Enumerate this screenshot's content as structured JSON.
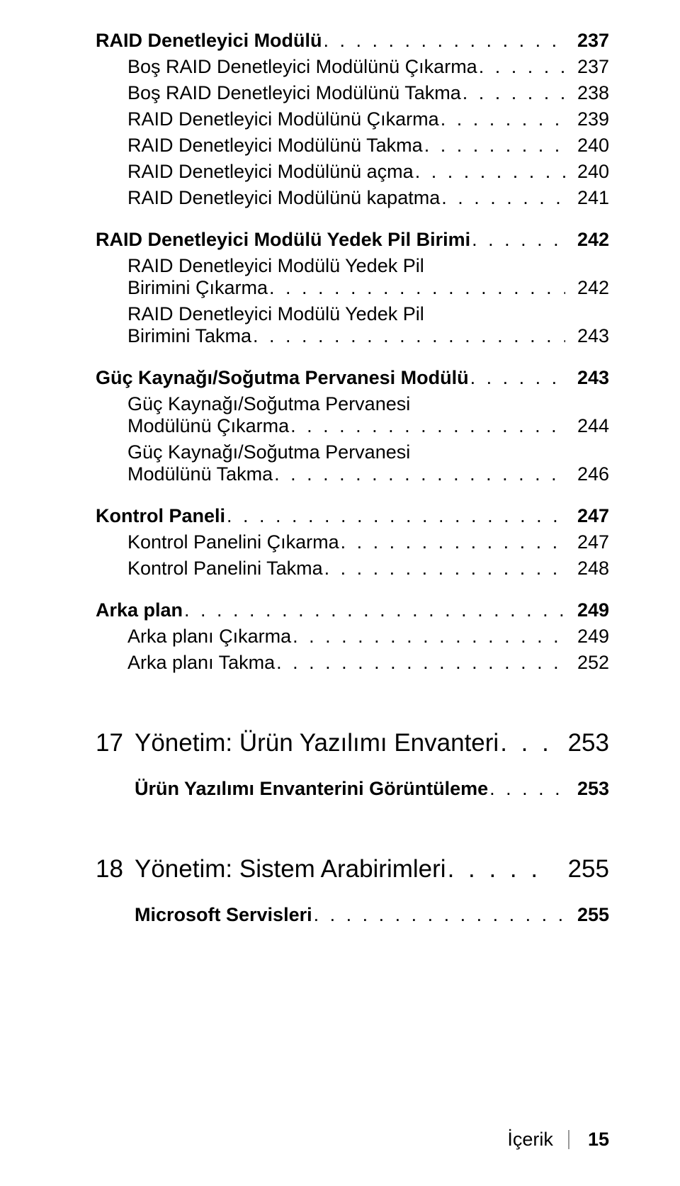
{
  "dots": ". . . . . . . . . . . . . . . . . . . . . . . . . . . . . . . . . . . . . . . . . . . .",
  "toc": {
    "s1": {
      "label": "RAID Denetleyici Modülü",
      "page": "237"
    },
    "s1a": {
      "label": "Boş RAID Denetleyici Modülünü Çıkarma",
      "page": "237"
    },
    "s1b": {
      "label": "Boş RAID Denetleyici Modülünü Takma",
      "page": "238"
    },
    "s1c": {
      "label": "RAID Denetleyici Modülünü Çıkarma",
      "page": "239"
    },
    "s1d": {
      "label": "RAID Denetleyici Modülünü Takma",
      "page": "240"
    },
    "s1e": {
      "label": "RAID Denetleyici Modülünü açma",
      "page": "240"
    },
    "s1f": {
      "label": "RAID Denetleyici Modülünü kapatma",
      "page": "241"
    },
    "s2": {
      "label": "RAID Denetleyici Modülü Yedek Pil Birimi",
      "page": "242"
    },
    "s2a": {
      "line1": "RAID Denetleyici Modülü Yedek Pil",
      "line2": "Birimini Çıkarma",
      "page": "242"
    },
    "s2b": {
      "line1": "RAID Denetleyici Modülü Yedek Pil",
      "line2": "Birimini Takma",
      "page": "243"
    },
    "s3": {
      "label": "Güç Kaynağı/Soğutma Pervanesi Modülü",
      "page": "243"
    },
    "s3a": {
      "line1": "Güç Kaynağı/Soğutma Pervanesi",
      "line2": "Modülünü Çıkarma",
      "page": "244"
    },
    "s3b": {
      "line1": "Güç Kaynağı/Soğutma Pervanesi",
      "line2": "Modülünü Takma",
      "page": "246"
    },
    "s4": {
      "label": "Kontrol Paneli",
      "page": "247"
    },
    "s4a": {
      "label": "Kontrol Panelini Çıkarma",
      "page": "247"
    },
    "s4b": {
      "label": "Kontrol Panelini Takma",
      "page": "248"
    },
    "s5": {
      "label": "Arka plan",
      "page": "249"
    },
    "s5a": {
      "label": "Arka planı Çıkarma",
      "page": "249"
    },
    "s5b": {
      "label": "Arka planı Takma",
      "page": "252"
    },
    "ch17": {
      "num": "17",
      "label": "Yönetim: Ürün Yazılımı Envanteri",
      "page": "253"
    },
    "ch17a": {
      "label": "Ürün Yazılımı Envanterini Görüntüleme",
      "page": "253"
    },
    "ch18": {
      "num": "18",
      "label": "Yönetim: Sistem Arabirimleri",
      "page": "255"
    },
    "ch18a": {
      "label": "Microsoft Servisleri",
      "page": "255"
    }
  },
  "footer": {
    "label": "İçerik",
    "page": "15"
  }
}
